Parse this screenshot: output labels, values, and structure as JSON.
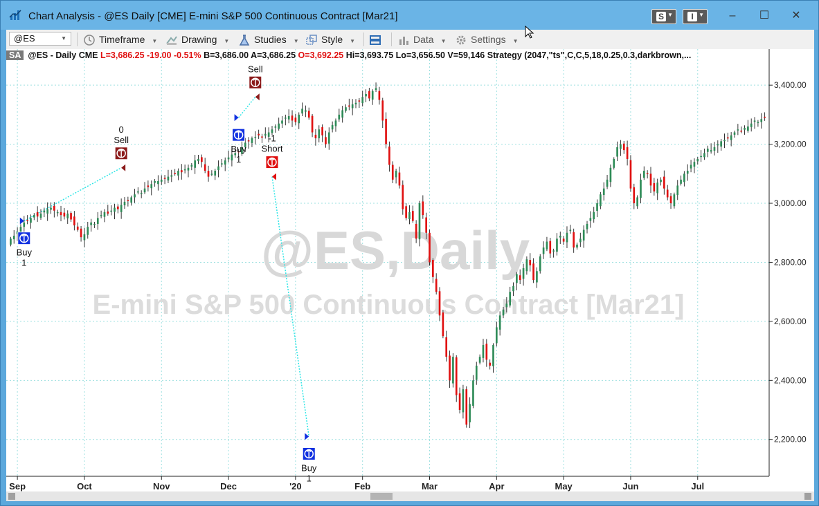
{
  "window": {
    "title": "Chart Analysis - @ES Daily [CME] E-mini S&P 500 Continuous Contract [Mar21]",
    "btn_s": "S",
    "btn_i": "I",
    "minimize": "–",
    "maximize": "☐",
    "close": "✕"
  },
  "toolbar": {
    "symbol": "@ES",
    "timeframe": "Timeframe",
    "drawing": "Drawing",
    "studies": "Studies",
    "style": "Style",
    "data": "Data",
    "settings": "Settings"
  },
  "status": {
    "tag": "SA",
    "symbol": "@ES - Daily  CME",
    "last": "L=3,686.25",
    "change": "-19.00",
    "pct": "-0.51%",
    "bid": "B=3,686.00",
    "ask": "A=3,686.25",
    "open": "O=3,692.25",
    "high": "Hi=3,693.75",
    "low": "Lo=3,656.50",
    "volume": "V=59,146",
    "strategy": "Strategy (2047,\"ts\",C,C,5,18,0.25,0.3,darkbrown,..."
  },
  "watermark": {
    "line1": "@ES,Daily",
    "line2": "E-mini S&P 500 Continuous Contract [Mar21]"
  },
  "colors": {
    "up": "#2e8b57",
    "down": "#e01010",
    "grid": "#9ee0e0",
    "buy_marker": "#1030e0",
    "sell_marker": "#8b1a1a",
    "short_marker": "#e01010"
  },
  "chart_data": {
    "type": "candlestick",
    "y_axis": {
      "min": 2080,
      "max": 3480,
      "ticks": [
        "3,400.00",
        "3,200.00",
        "3,000.00",
        "2,800.00",
        "2,600.00",
        "2,400.00",
        "2,200.00"
      ],
      "tick_values": [
        3400,
        3200,
        3000,
        2800,
        2600,
        2400,
        2200
      ]
    },
    "x_axis_labels": [
      "Sep",
      "Oct",
      "Nov",
      "Dec",
      "'20",
      "Feb",
      "Mar",
      "Apr",
      "May",
      "Jun",
      "Jul"
    ],
    "x_axis_label_index": [
      2,
      22,
      45,
      65,
      85,
      105,
      125,
      145,
      165,
      185,
      205
    ],
    "bar_count": 219,
    "closes": [
      2880,
      2890,
      2905,
      2920,
      2935,
      2940,
      2950,
      2960,
      2955,
      2965,
      2975,
      2980,
      2985,
      2975,
      2970,
      2960,
      2955,
      2965,
      2945,
      2925,
      2910,
      2885,
      2895,
      2920,
      2935,
      2930,
      2950,
      2960,
      2970,
      2965,
      2975,
      2985,
      2980,
      2995,
      3005,
      3010,
      3020,
      3030,
      3040,
      3035,
      3050,
      3055,
      3065,
      3075,
      3075,
      3080,
      3085,
      3090,
      3095,
      3100,
      3110,
      3105,
      3115,
      3120,
      3130,
      3145,
      3150,
      3140,
      3110,
      3090,
      3100,
      3110,
      3125,
      3135,
      3145,
      3155,
      3165,
      3170,
      3175,
      3190,
      3205,
      3210,
      3220,
      3225,
      3230,
      3225,
      3235,
      3240,
      3250,
      3260,
      3270,
      3280,
      3290,
      3295,
      3280,
      3275,
      3300,
      3320,
      3315,
      3290,
      3240,
      3220,
      3250,
      3230,
      3200,
      3240,
      3265,
      3280,
      3300,
      3315,
      3325,
      3330,
      3335,
      3340,
      3345,
      3360,
      3370,
      3355,
      3380,
      3390,
      3350,
      3280,
      3200,
      3130,
      3080,
      3110,
      3060,
      2980,
      2950,
      2970,
      2940,
      2880,
      3000,
      2960,
      2900,
      2800,
      2750,
      2700,
      2620,
      2550,
      2480,
      2400,
      2480,
      2350,
      2300,
      2370,
      2250,
      2320,
      2400,
      2450,
      2480,
      2520,
      2470,
      2450,
      2520,
      2580,
      2620,
      2640,
      2660,
      2700,
      2720,
      2760,
      2740,
      2780,
      2810,
      2790,
      2740,
      2770,
      2820,
      2850,
      2870,
      2830,
      2840,
      2880,
      2890,
      2870,
      2900,
      2910,
      2850,
      2860,
      2880,
      2910,
      2930,
      2950,
      2970,
      3000,
      3030,
      3050,
      3080,
      3120,
      3150,
      3190,
      3200,
      3180,
      3150,
      3050,
      3000,
      3020,
      3080,
      3110,
      3100,
      3060,
      3040,
      3070,
      3080,
      3050,
      3020,
      3000,
      3030,
      3060,
      3080,
      3100,
      3110,
      3130,
      3140,
      3150,
      3160,
      3170,
      3185,
      3180,
      3190,
      3200,
      3210,
      3215,
      3220,
      3230,
      3240,
      3250,
      3245,
      3255,
      3260,
      3270,
      3280,
      3275,
      3285,
      3290
    ],
    "signals": [
      {
        "kind": "Buy",
        "qty": "1",
        "label": "Buy",
        "bar": 4,
        "price": 2940
      },
      {
        "kind": "Sell",
        "qty": "0",
        "label": "Sell",
        "bar": 33,
        "price": 3120
      },
      {
        "kind": "Buy",
        "qty": "1",
        "label": "Buy",
        "bar": 68,
        "price": 3290
      },
      {
        "kind": "Sell",
        "qty": "",
        "label": "Sell",
        "bar": 73,
        "price": 3360
      },
      {
        "kind": "Short",
        "qty": "-1",
        "label": "Short",
        "bar": 78,
        "price": 3090
      },
      {
        "kind": "Buy",
        "qty": "1",
        "label": "Buy",
        "bar": 89,
        "price": 2210
      }
    ]
  }
}
